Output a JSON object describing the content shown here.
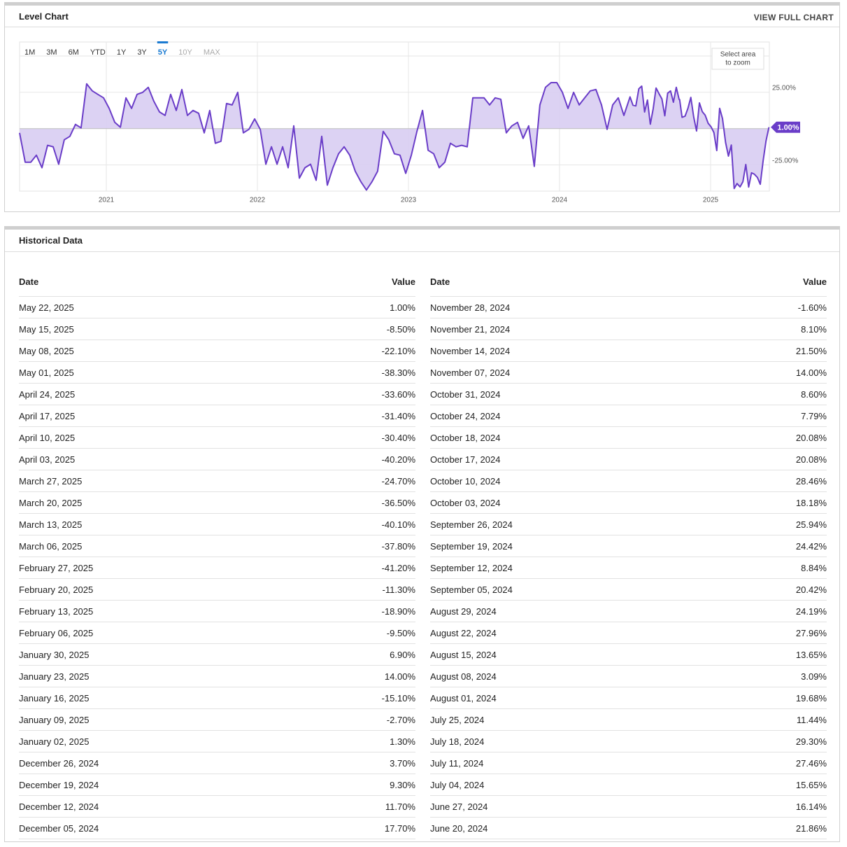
{
  "chart_panel": {
    "title": "Level Chart",
    "link": "VIEW FULL CHART",
    "zoom_hint": [
      "Select area",
      "to zoom"
    ],
    "range_buttons": [
      "1M",
      "3M",
      "6M",
      "YTD",
      "1Y",
      "3Y",
      "5Y",
      "10Y",
      "MAX"
    ],
    "active_range": 6,
    "disabled_ranges": [
      7,
      8
    ]
  },
  "chart_data": {
    "type": "area",
    "color": "#6a3dc8",
    "fill": "#d8cdf2",
    "grid": true,
    "xlim": [
      2020.426,
      2025.389
    ],
    "xticks": [
      2021,
      2022,
      2023,
      2024,
      2025
    ],
    "ylim": [
      -43,
      50
    ],
    "yticks": [
      {
        "value": 25,
        "label": "25.00%"
      },
      {
        "value": -25,
        "label": "-25.00%"
      }
    ],
    "last_label": "1.00%",
    "x": [
      2020.426,
      2020.463,
      2020.5,
      2020.537,
      2020.574,
      2020.611,
      2020.648,
      2020.685,
      2020.722,
      2020.759,
      2020.796,
      2020.833,
      2020.87,
      2020.907,
      2020.944,
      2020.982,
      2021.019,
      2021.056,
      2021.093,
      2021.13,
      2021.167,
      2021.204,
      2021.241,
      2021.278,
      2021.315,
      2021.352,
      2021.389,
      2021.426,
      2021.463,
      2021.5,
      2021.537,
      2021.574,
      2021.611,
      2021.648,
      2021.685,
      2021.722,
      2021.759,
      2021.796,
      2021.833,
      2021.87,
      2021.907,
      2021.944,
      2021.982,
      2022.019,
      2022.056,
      2022.093,
      2022.13,
      2022.167,
      2022.204,
      2022.241,
      2022.278,
      2022.315,
      2022.352,
      2022.389,
      2022.426,
      2022.463,
      2022.5,
      2022.537,
      2022.574,
      2022.611,
      2022.648,
      2022.685,
      2022.722,
      2022.759,
      2022.796,
      2022.833,
      2022.87,
      2022.907,
      2022.944,
      2022.982,
      2023.019,
      2023.056,
      2023.093,
      2023.13,
      2023.167,
      2023.204,
      2023.241,
      2023.278,
      2023.315,
      2023.352,
      2023.389,
      2023.426,
      2023.463,
      2023.5,
      2023.537,
      2023.574,
      2023.611,
      2023.648,
      2023.685,
      2023.722,
      2023.759,
      2023.796,
      2023.833,
      2023.87,
      2023.907,
      2023.944,
      2023.982,
      2024.019,
      2024.056,
      2024.093,
      2024.13,
      2024.167,
      2024.204,
      2024.241,
      2024.278,
      2024.315,
      2024.352,
      2024.389,
      2024.426,
      2024.467,
      2024.486,
      2024.505,
      2024.525,
      2024.544,
      2024.563,
      2024.582,
      2024.601,
      2024.62,
      2024.639,
      2024.658,
      2024.678,
      2024.697,
      2024.716,
      2024.735,
      2024.754,
      2024.773,
      2024.792,
      2024.795,
      2024.811,
      2024.831,
      2024.85,
      2024.869,
      2024.888,
      2024.907,
      2024.926,
      2024.945,
      2024.964,
      2024.984,
      2025.003,
      2025.022,
      2025.041,
      2025.06,
      2025.079,
      2025.099,
      2025.118,
      2025.137,
      2025.156,
      2025.175,
      2025.195,
      2025.214,
      2025.233,
      2025.252,
      2025.271,
      2025.29,
      2025.31,
      2025.329,
      2025.348,
      2025.367,
      2025.386
    ],
    "series": [
      {
        "values": [
          -2.9,
          -23.1,
          -23.1,
          -18.3,
          -26.9,
          -11.5,
          -12.5,
          -24.5,
          -7.7,
          -5.3,
          2.9,
          0.5,
          30.8,
          26.0,
          23.6,
          21.2,
          13.9,
          4.3,
          1.0,
          21.2,
          13.9,
          23.6,
          25.0,
          28.4,
          18.8,
          11.5,
          9.1,
          23.6,
          12.5,
          26.9,
          9.1,
          12.5,
          10.6,
          -2.9,
          12.5,
          -10.1,
          -8.7,
          17.3,
          16.3,
          25.0,
          -2.9,
          -0.5,
          6.7,
          -0.5,
          -24.5,
          -12.5,
          -24.5,
          -12.5,
          -26.9,
          1.9,
          -34.1,
          -26.9,
          -24.5,
          -35.6,
          -5.3,
          -38.9,
          -26.9,
          -17.3,
          -12.5,
          -18.3,
          -29.3,
          -36.5,
          -42.3,
          -36.5,
          -29.3,
          -1.9,
          -7.7,
          -17.3,
          -18.3,
          -30.8,
          -18.3,
          -1.9,
          12.5,
          -14.9,
          -17.3,
          -26.9,
          -23.1,
          -10.1,
          -12.5,
          -11.5,
          -12.5,
          21.2,
          21.2,
          21.2,
          16.3,
          21.2,
          20.2,
          -2.9,
          1.9,
          4.3,
          -6.7,
          1.9,
          -26.0,
          16.3,
          28.4,
          31.7,
          31.7,
          25.0,
          13.9,
          25.0,
          16.3,
          21.2,
          26.0,
          26.9,
          16.3,
          -0.5,
          16.3,
          21.2,
          9.1,
          21.86,
          16.14,
          15.65,
          27.46,
          29.3,
          11.44,
          19.68,
          3.09,
          13.65,
          27.96,
          24.19,
          20.42,
          8.84,
          24.42,
          25.94,
          18.18,
          28.46,
          20.08,
          20.08,
          7.79,
          8.6,
          14,
          21.5,
          8.1,
          -1.6,
          17.7,
          11.7,
          9.3,
          3.7,
          1.3,
          -2.7,
          -15.1,
          14,
          6.9,
          -9.5,
          -18.9,
          -11.3,
          -41.2,
          -37.8,
          -40.1,
          -36.5,
          -24.7,
          -40.2,
          -30.4,
          -31.4,
          -33.6,
          -38.3,
          -22.1,
          -8.5,
          1.0
        ]
      }
    ]
  },
  "table": {
    "title": "Historical Data",
    "headers": [
      "Date",
      "Value",
      "Date",
      "Value"
    ],
    "rows": [
      [
        "May 22, 2025",
        "1.00%",
        "November 28, 2024",
        "-1.60%"
      ],
      [
        "May 15, 2025",
        "-8.50%",
        "November 21, 2024",
        "8.10%"
      ],
      [
        "May 08, 2025",
        "-22.10%",
        "November 14, 2024",
        "21.50%"
      ],
      [
        "May 01, 2025",
        "-38.30%",
        "November 07, 2024",
        "14.00%"
      ],
      [
        "April 24, 2025",
        "-33.60%",
        "October 31, 2024",
        "8.60%"
      ],
      [
        "April 17, 2025",
        "-31.40%",
        "October 24, 2024",
        "7.79%"
      ],
      [
        "April 10, 2025",
        "-30.40%",
        "October 18, 2024",
        "20.08%"
      ],
      [
        "April 03, 2025",
        "-40.20%",
        "October 17, 2024",
        "20.08%"
      ],
      [
        "March 27, 2025",
        "-24.70%",
        "October 10, 2024",
        "28.46%"
      ],
      [
        "March 20, 2025",
        "-36.50%",
        "October 03, 2024",
        "18.18%"
      ],
      [
        "March 13, 2025",
        "-40.10%",
        "September 26, 2024",
        "25.94%"
      ],
      [
        "March 06, 2025",
        "-37.80%",
        "September 19, 2024",
        "24.42%"
      ],
      [
        "February 27, 2025",
        "-41.20%",
        "September 12, 2024",
        "8.84%"
      ],
      [
        "February 20, 2025",
        "-11.30%",
        "September 05, 2024",
        "20.42%"
      ],
      [
        "February 13, 2025",
        "-18.90%",
        "August 29, 2024",
        "24.19%"
      ],
      [
        "February 06, 2025",
        "-9.50%",
        "August 22, 2024",
        "27.96%"
      ],
      [
        "January 30, 2025",
        "6.90%",
        "August 15, 2024",
        "13.65%"
      ],
      [
        "January 23, 2025",
        "14.00%",
        "August 08, 2024",
        "3.09%"
      ],
      [
        "January 16, 2025",
        "-15.10%",
        "August 01, 2024",
        "19.68%"
      ],
      [
        "January 09, 2025",
        "-2.70%",
        "July 25, 2024",
        "11.44%"
      ],
      [
        "January 02, 2025",
        "1.30%",
        "July 18, 2024",
        "29.30%"
      ],
      [
        "December 26, 2024",
        "3.70%",
        "July 11, 2024",
        "27.46%"
      ],
      [
        "December 19, 2024",
        "9.30%",
        "July 04, 2024",
        "15.65%"
      ],
      [
        "December 12, 2024",
        "11.70%",
        "June 27, 2024",
        "16.14%"
      ],
      [
        "December 05, 2024",
        "17.70%",
        "June 20, 2024",
        "21.86%"
      ]
    ]
  }
}
